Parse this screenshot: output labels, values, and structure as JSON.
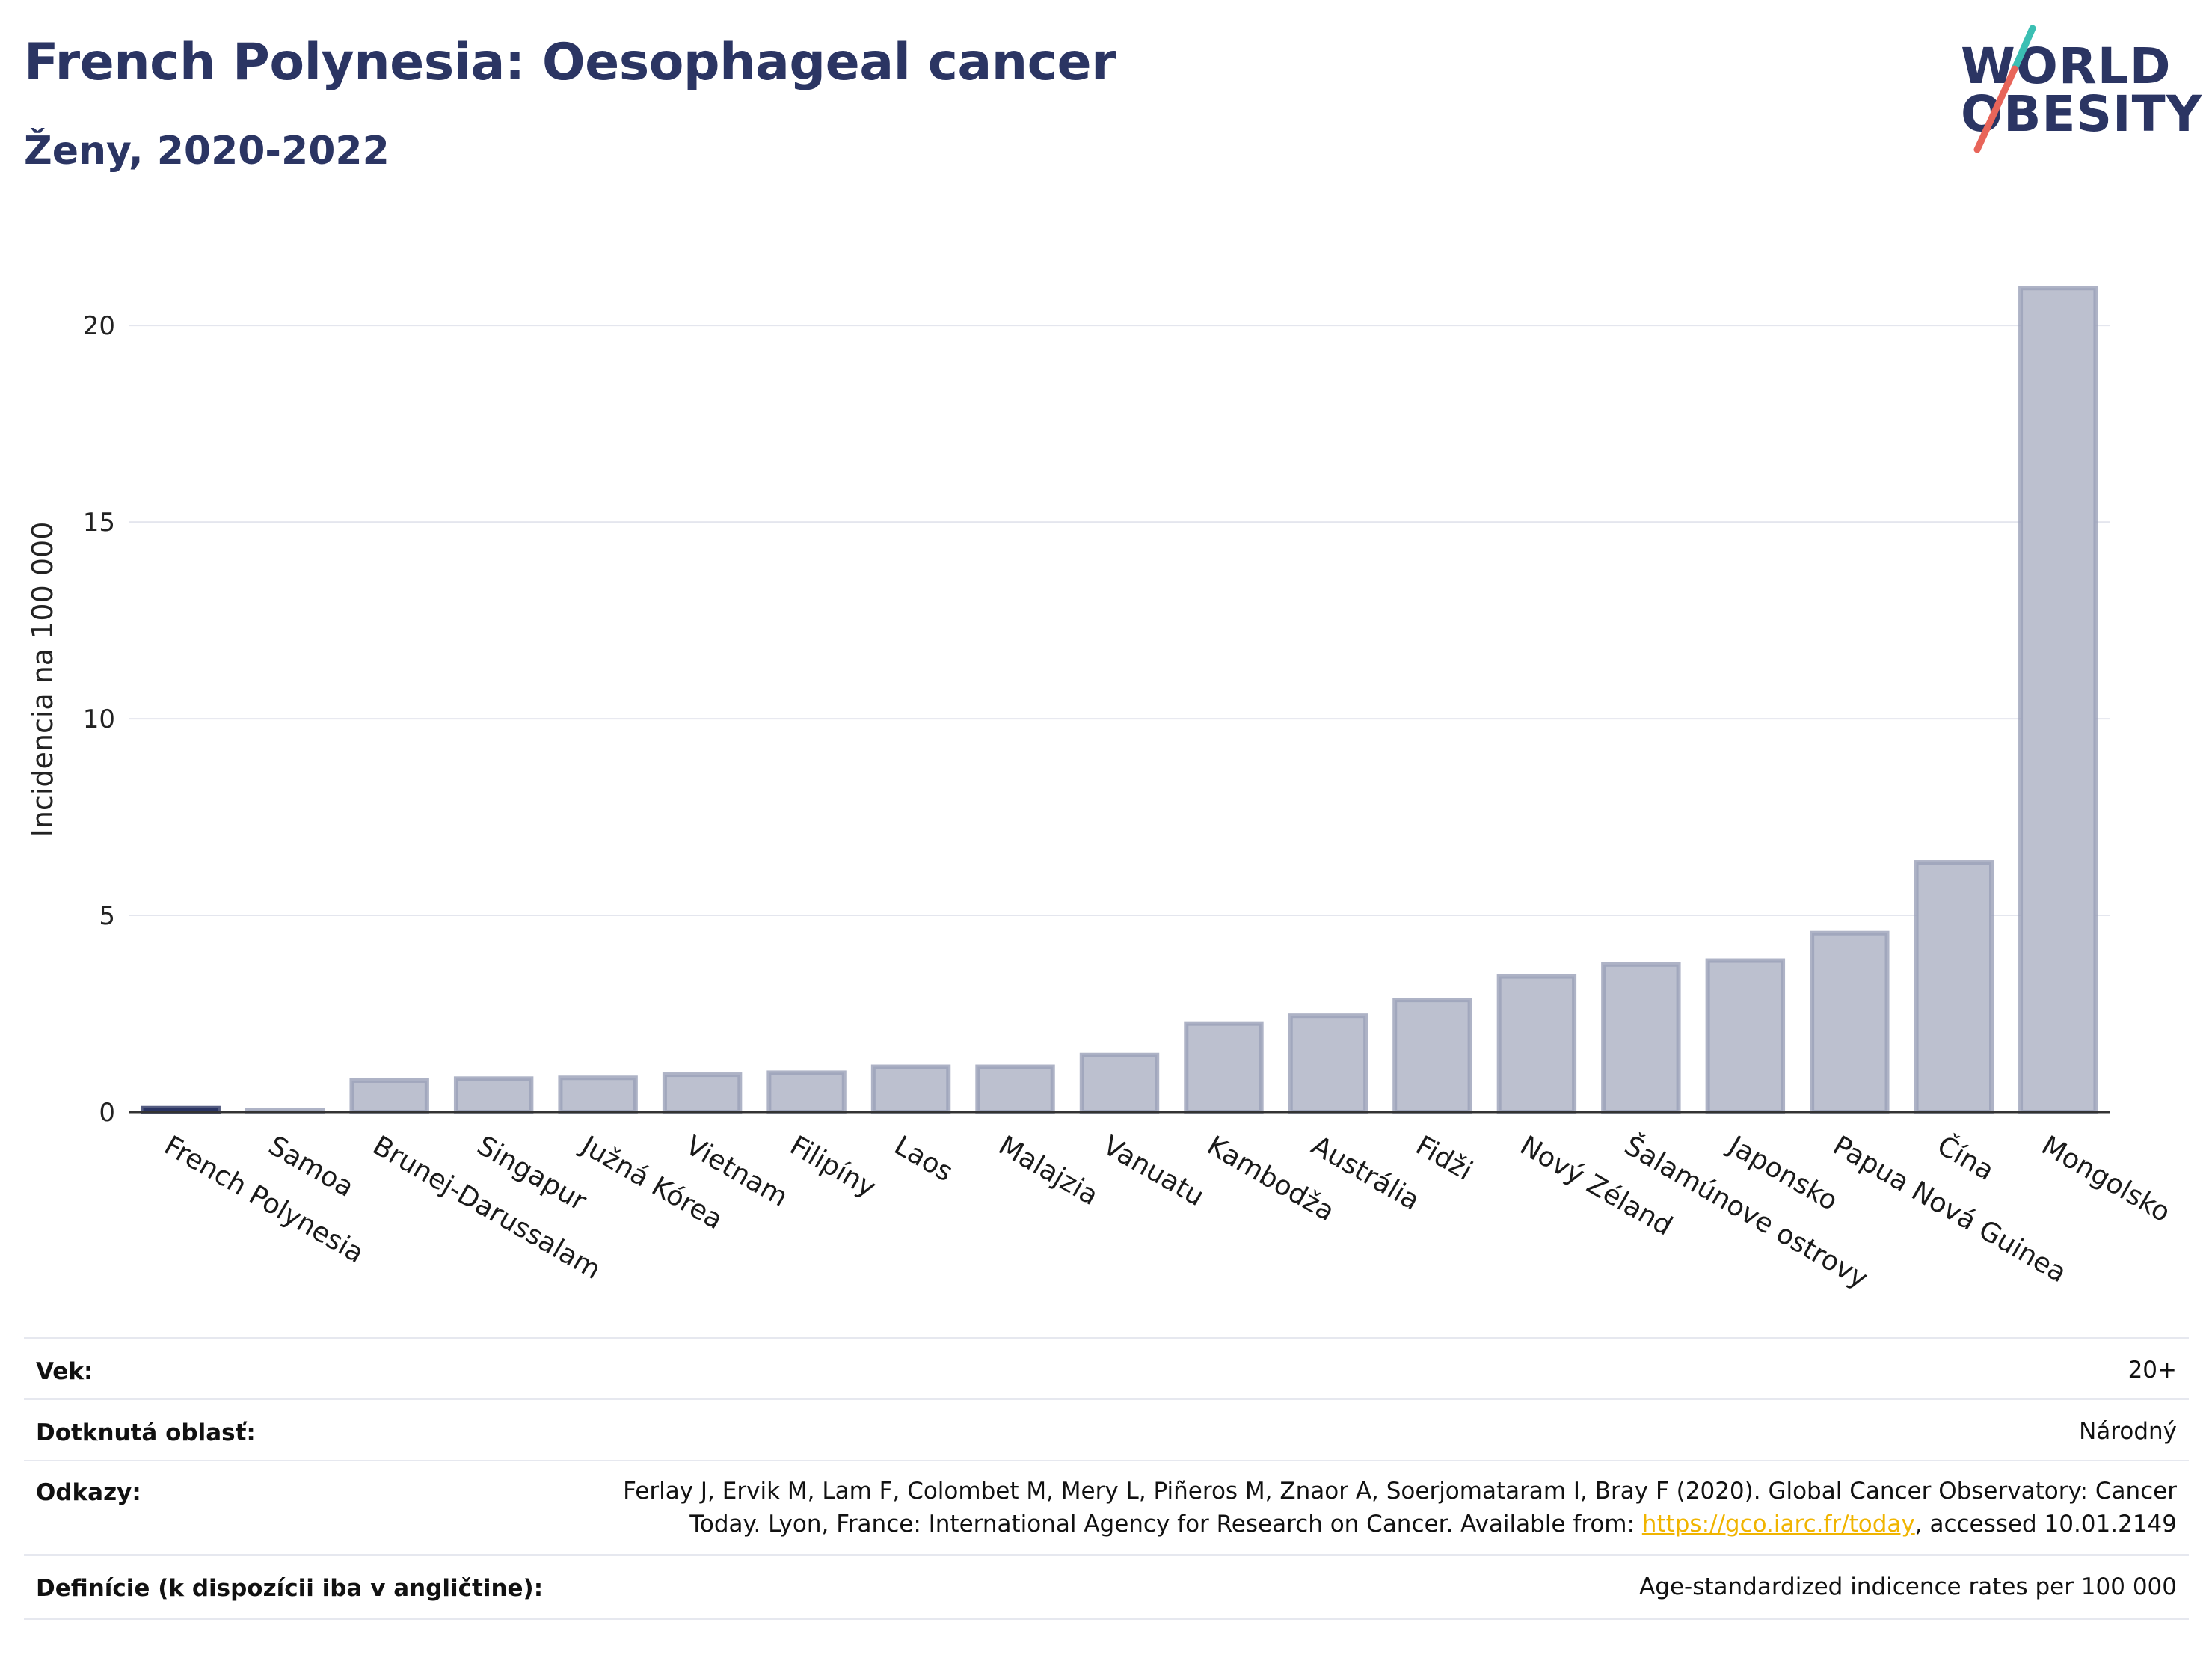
{
  "header": {
    "title": "French Polynesia: Oesophageal cancer",
    "subtitle": "Ženy, 2020-2022",
    "logo_line1": "WORLD",
    "logo_line2": "OBESITY"
  },
  "colors": {
    "highlight_bar": "#2b3563",
    "bar_fill": "#bcc0cf",
    "bar_stroke": "#9aa0b8",
    "grid": "#e4e6ee",
    "logo_teal": "#3bbfb3",
    "logo_coral": "#e8655a",
    "link": "#f0b400"
  },
  "chart_data": {
    "type": "bar",
    "title": "French Polynesia: Oesophageal cancer",
    "subtitle": "Ženy, 2020-2022",
    "ylabel": "Incidencia na 100 000",
    "xlabel": "",
    "ylim": [
      0,
      22
    ],
    "yticks": [
      0,
      5,
      10,
      15,
      20
    ],
    "grid": true,
    "highlight": "French Polynesia",
    "categories": [
      "French Polynesia",
      "Samoa",
      "Brunej-Darussalam",
      "Singapur",
      "Južná Kórea",
      "Vietnam",
      "Filipíny",
      "Laos",
      "Malajzia",
      "Vanuatu",
      "Kambodža",
      "Austrália",
      "Fidži",
      "Nový Zéland",
      "Šalamúnove ostrovy",
      "Japonsko",
      "Papua Nová Guinea",
      "Čína",
      "Mongolsko"
    ],
    "values": [
      0.1,
      0.05,
      0.8,
      0.85,
      0.87,
      0.95,
      1.0,
      1.15,
      1.15,
      1.45,
      2.25,
      2.45,
      2.85,
      3.45,
      3.75,
      3.85,
      4.55,
      6.35,
      20.95
    ]
  },
  "info": {
    "age_label": "Vek:",
    "age_value": "20+",
    "area_label": "Dotknutá oblasť:",
    "area_value": "Národný",
    "refs_label": "Odkazy:",
    "refs_line1": "Ferlay J, Ervik M, Lam F, Colombet M, Mery L, Piñeros M, Znaor A, Soerjomataram I, Bray F (2020). Global Cancer Observatory: Cancer",
    "refs_line2_pre": "Today. Lyon, France: International Agency for Research on Cancer. Available from: ",
    "refs_link": "https://gco.iarc.fr/today",
    "refs_line2_post": ", accessed 10.01.2149",
    "def_label": "Definície (k dispozícii iba v angličtine):",
    "def_value": "Age-standardized indicence rates per 100 000"
  }
}
